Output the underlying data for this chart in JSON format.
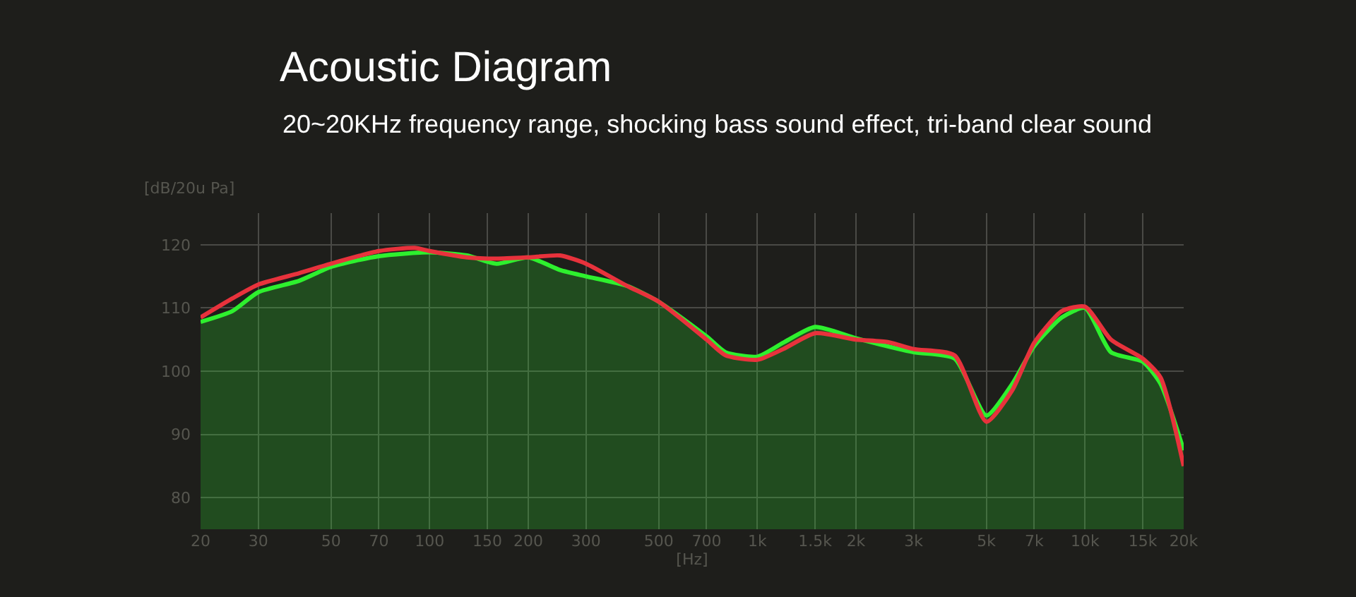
{
  "chart_data": {
    "type": "line",
    "title": "Acoustic Diagram",
    "subtitle": "20~20KHz frequency range, shocking bass sound effect, tri-band clear sound",
    "xlabel": "[Hz]",
    "ylabel": "[dB/20u Pa]",
    "log": "x",
    "grid": true,
    "xlim": [
      20,
      20000
    ],
    "ylim": [
      75,
      125
    ],
    "xticks": [
      20,
      30,
      50,
      70,
      100,
      150,
      200,
      300,
      500,
      700,
      {
        "value": 1000,
        "label": "1k"
      },
      {
        "value": 1500,
        "label": "1.5k"
      },
      {
        "value": 2000,
        "label": "2k"
      },
      {
        "value": 3000,
        "label": "3k"
      },
      {
        "value": 5000,
        "label": "5k"
      },
      {
        "value": 7000,
        "label": "7k"
      },
      {
        "value": 10000,
        "label": "10k"
      },
      {
        "value": 15000,
        "label": "15k"
      },
      {
        "value": 20000,
        "label": "20k"
      }
    ],
    "yticks": [
      80,
      90,
      100,
      110,
      120
    ],
    "series": [
      {
        "type": "line",
        "color": "#e8323c",
        "x": [
          20,
          25,
          30,
          40,
          50,
          70,
          90,
          100,
          130,
          160,
          200,
          250,
          300,
          400,
          500,
          700,
          800,
          1000,
          1200,
          1500,
          2000,
          2500,
          3000,
          4000,
          5000,
          6000,
          7000,
          8500,
          10000,
          12000,
          15000,
          17000,
          20000
        ],
        "values": [
          108.5,
          111.5,
          113.7,
          115.5,
          117,
          119,
          119.5,
          119,
          118,
          117.8,
          118,
          118.3,
          117,
          113.5,
          111,
          105,
          102.5,
          101.8,
          103.5,
          106,
          105,
          104.6,
          103.5,
          102.5,
          92,
          97,
          104.5,
          109.5,
          110.2,
          105,
          102,
          99,
          85
        ]
      },
      {
        "type": "area",
        "color": "#2ef02e",
        "x": [
          20,
          25,
          30,
          40,
          50,
          70,
          100,
          130,
          160,
          200,
          250,
          300,
          400,
          500,
          700,
          800,
          1000,
          1200,
          1500,
          2000,
          3000,
          4000,
          5000,
          6000,
          7000,
          8500,
          10000,
          12000,
          15000,
          17000,
          20000
        ],
        "values": [
          107.8,
          109.5,
          112.5,
          114.3,
          116.5,
          118.2,
          118.8,
          118.3,
          117,
          118,
          116,
          115,
          113.5,
          111,
          105.5,
          103,
          102.3,
          104.5,
          107,
          105.2,
          103,
          102,
          93,
          98,
          104,
          108.5,
          110,
          103,
          101.5,
          98,
          87.5
        ]
      }
    ]
  }
}
